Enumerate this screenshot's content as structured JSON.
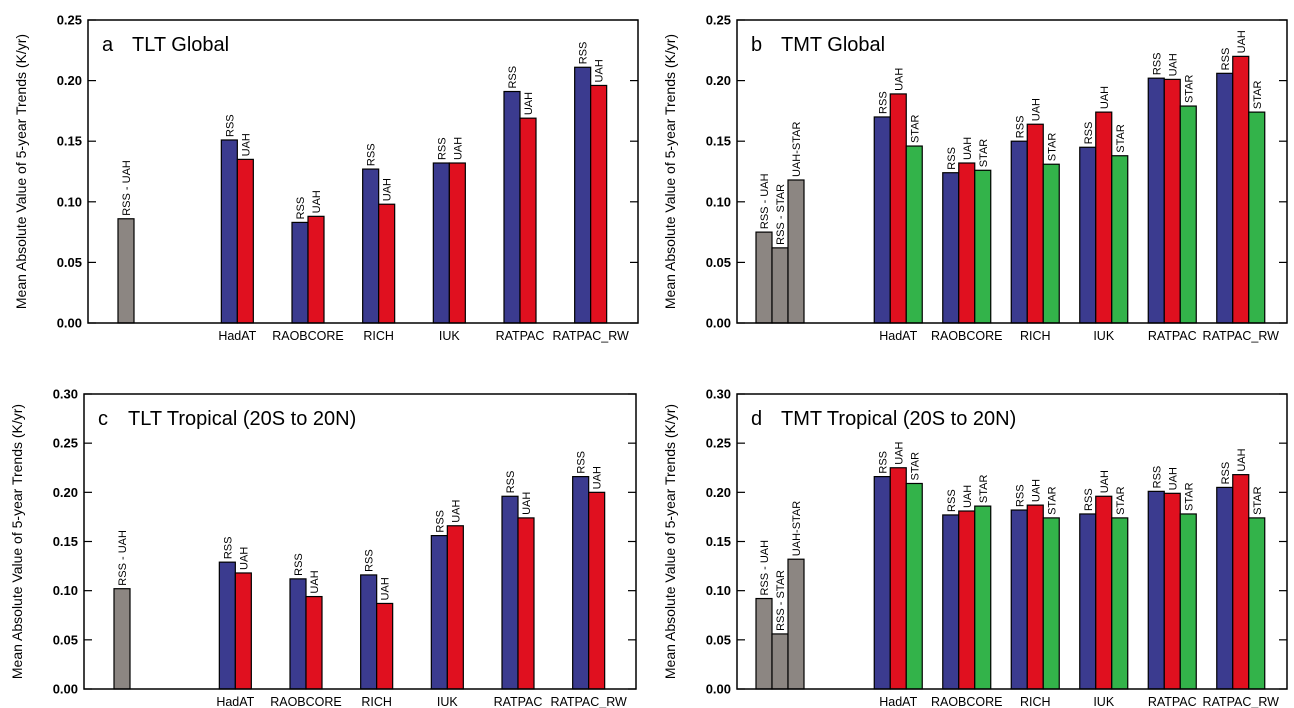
{
  "y_axis_label": "Mean Absolute Value of 5-year Trends (K/yr)",
  "colors": {
    "RSS": "#3b3b8f",
    "UAH": "#e0101f",
    "STAR": "#33b34a",
    "diff": "#8c8682",
    "axis": "#000000"
  },
  "panels": [
    {
      "tag": "a",
      "title": "TLT Global",
      "chart_data": {
        "type": "bar",
        "ylim": [
          0,
          0.25
        ],
        "yticks": [
          0.0,
          0.05,
          0.1,
          0.15,
          0.2,
          0.25
        ],
        "tick_labels": [
          "0.00",
          "0.05",
          "0.10",
          "0.15",
          "0.20",
          "0.25"
        ],
        "ylabel": "Mean Absolute Value of 5-year Trends (K/yr)",
        "difference_bars": [
          {
            "label": "RSS - UAH",
            "value": 0.086
          }
        ],
        "categories": [
          "HadAT",
          "RAOBCORE",
          "RICH",
          "IUK",
          "RATPAC",
          "RATPAC_RW"
        ],
        "series": [
          {
            "name": "RSS",
            "color_key": "RSS",
            "values": [
              0.151,
              0.083,
              0.127,
              0.132,
              0.191,
              0.211
            ]
          },
          {
            "name": "UAH",
            "color_key": "UAH",
            "values": [
              0.135,
              0.088,
              0.098,
              0.132,
              0.169,
              0.196
            ]
          }
        ]
      }
    },
    {
      "tag": "b",
      "title": "TMT Global",
      "chart_data": {
        "type": "bar",
        "ylim": [
          0,
          0.25
        ],
        "yticks": [
          0.0,
          0.05,
          0.1,
          0.15,
          0.2,
          0.25
        ],
        "tick_labels": [
          "0.00",
          "0.05",
          "0.10",
          "0.15",
          "0.20",
          "0.25"
        ],
        "ylabel": "Mean Absolute Value of 5-year Trends (K/yr)",
        "difference_bars": [
          {
            "label": "RSS - UAH",
            "value": 0.075
          },
          {
            "label": "RSS - STAR",
            "value": 0.062
          },
          {
            "label": "UAH-STAR",
            "value": 0.118
          }
        ],
        "categories": [
          "HadAT",
          "RAOBCORE",
          "RICH",
          "IUK",
          "RATPAC",
          "RATPAC_RW"
        ],
        "series": [
          {
            "name": "RSS",
            "color_key": "RSS",
            "values": [
              0.17,
              0.124,
              0.15,
              0.145,
              0.202,
              0.206
            ]
          },
          {
            "name": "UAH",
            "color_key": "UAH",
            "values": [
              0.189,
              0.132,
              0.164,
              0.174,
              0.201,
              0.22
            ]
          },
          {
            "name": "STAR",
            "color_key": "STAR",
            "values": [
              0.146,
              0.126,
              0.131,
              0.138,
              0.179,
              0.174
            ]
          }
        ]
      }
    },
    {
      "tag": "c",
      "title": "TLT Tropical (20S to 20N)",
      "chart_data": {
        "type": "bar",
        "ylim": [
          0,
          0.3
        ],
        "yticks": [
          0.0,
          0.05,
          0.1,
          0.15,
          0.2,
          0.25,
          0.3
        ],
        "tick_labels": [
          "0.00",
          "0.05",
          "0.10",
          "0.15",
          "0.20",
          "0.25",
          "0.30"
        ],
        "ylabel": "Mean Absolute Value of 5-year Trends (K/yr)",
        "difference_bars": [
          {
            "label": "RSS - UAH",
            "value": 0.102
          }
        ],
        "categories": [
          "HadAT",
          "RAOBCORE",
          "RICH",
          "IUK",
          "RATPAC",
          "RATPAC_RW"
        ],
        "series": [
          {
            "name": "RSS",
            "color_key": "RSS",
            "values": [
              0.129,
              0.112,
              0.116,
              0.156,
              0.196,
              0.216
            ]
          },
          {
            "name": "UAH",
            "color_key": "UAH",
            "values": [
              0.118,
              0.094,
              0.087,
              0.166,
              0.174,
              0.2
            ]
          }
        ]
      }
    },
    {
      "tag": "d",
      "title": "TMT Tropical (20S to 20N)",
      "chart_data": {
        "type": "bar",
        "ylim": [
          0,
          0.3
        ],
        "yticks": [
          0.0,
          0.05,
          0.1,
          0.15,
          0.2,
          0.25,
          0.3
        ],
        "tick_labels": [
          "0.00",
          "0.05",
          "0.10",
          "0.15",
          "0.20",
          "0.25",
          "0.30"
        ],
        "ylabel": "Mean Absolute Value of 5-year Trends (K/yr)",
        "difference_bars": [
          {
            "label": "RSS - UAH",
            "value": 0.092
          },
          {
            "label": "RSS - STAR",
            "value": 0.056
          },
          {
            "label": "UAH-STAR",
            "value": 0.132
          }
        ],
        "categories": [
          "HadAT",
          "RAOBCORE",
          "RICH",
          "IUK",
          "RATPAC",
          "RATPAC_RW"
        ],
        "series": [
          {
            "name": "RSS",
            "color_key": "RSS",
            "values": [
              0.216,
              0.177,
              0.182,
              0.178,
              0.201,
              0.205
            ]
          },
          {
            "name": "UAH",
            "color_key": "UAH",
            "values": [
              0.225,
              0.181,
              0.187,
              0.196,
              0.199,
              0.218
            ]
          },
          {
            "name": "STAR",
            "color_key": "STAR",
            "values": [
              0.209,
              0.186,
              0.174,
              0.174,
              0.178,
              0.174
            ]
          }
        ]
      }
    }
  ]
}
